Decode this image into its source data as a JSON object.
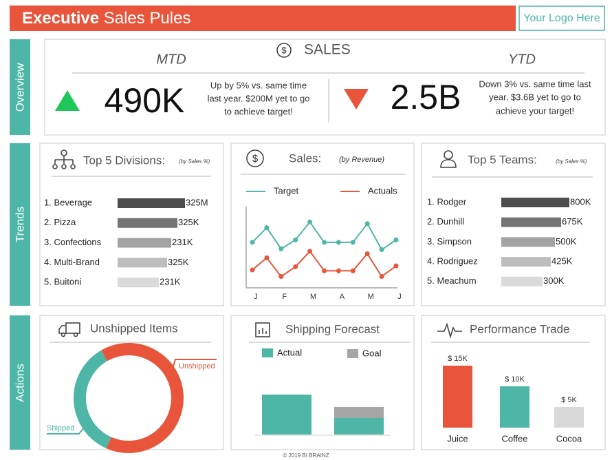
{
  "header": {
    "title_bold": "Executive",
    "title_rest": " Sales Pules",
    "logo": "Your Logo Here"
  },
  "sections": [
    "Overview",
    "Trends",
    "Actions"
  ],
  "overview": {
    "title": "SALES",
    "mtd": {
      "label": "MTD",
      "value": "490K",
      "description": [
        "Up by 5% vs. same time",
        "last year. $200M yet to go",
        "to achieve target!"
      ]
    },
    "ytd": {
      "label": "YTD",
      "value": "2.5B",
      "description": [
        "Down 3% vs. same time last",
        "year. $3.6B yet to go to",
        "achieve your target!"
      ]
    }
  },
  "chart_data": [
    {
      "type": "bar",
      "orientation": "horizontal",
      "title": "Top 5 Divisions:",
      "subtitle": "(by Sales %)",
      "categories": [
        "1. Beverage",
        "2. Pizza",
        "3. Confections",
        "4. Multi-Brand",
        "5. Buitoni"
      ],
      "values": [
        98,
        87,
        78,
        72,
        60
      ],
      "amounts": [
        "325M",
        "325K",
        "231K",
        "325K",
        "231K"
      ],
      "colors": [
        "#4d4d4d",
        "#747474",
        "#a3a3a3",
        "#bdbdbd",
        "#dadada"
      ],
      "xlim": [
        0,
        100
      ]
    },
    {
      "type": "line",
      "title": "Sales:",
      "subtitle": "(by Revenue)",
      "categories": [
        "J",
        null,
        "F",
        null,
        "M",
        null,
        "A",
        null,
        "M",
        null,
        "J"
      ],
      "series": [
        {
          "name": "Target",
          "color": "#4db6a6",
          "values": [
            56,
            74,
            48,
            59,
            81,
            56,
            56,
            56,
            79,
            47,
            59
          ]
        },
        {
          "name": "Actuals",
          "color": "#e8553a",
          "values": [
            22,
            37,
            14,
            26,
            45,
            21,
            21,
            21,
            42,
            14,
            27
          ]
        }
      ],
      "ylim": [
        0,
        100
      ]
    },
    {
      "type": "bar",
      "orientation": "horizontal",
      "title": "Top 5 Teams:",
      "subtitle": "(by Sales %)",
      "categories": [
        "1. Rodger",
        "2. Dunhill",
        "3. Simpson",
        "4. Rodriguez",
        "5. Meachum"
      ],
      "values": [
        99,
        87,
        78,
        72,
        60
      ],
      "amounts": [
        "800K",
        "675K",
        "500K",
        "425K",
        "300K"
      ],
      "colors": [
        "#4d4d4d",
        "#747474",
        "#a3a3a3",
        "#bdbdbd",
        "#dadada"
      ],
      "xlim": [
        0,
        100
      ]
    },
    {
      "type": "pie",
      "donut": true,
      "title": "Unshipped Items",
      "categories": [
        "Unshipped",
        "Shipped"
      ],
      "values": [
        65,
        35
      ],
      "colors": [
        "#e8553a",
        "#4db6a6"
      ]
    },
    {
      "type": "bar",
      "stacked": true,
      "title": "Shipping Forecast",
      "categories": [
        null,
        null
      ],
      "series": [
        {
          "name": "Actual",
          "color": "#4db6a6",
          "values": [
            58,
            24
          ]
        },
        {
          "name": "Goal",
          "color": "#a6a6a6",
          "values": [
            0,
            16
          ]
        }
      ],
      "ylim": [
        0,
        100
      ]
    },
    {
      "type": "bar",
      "title": "Performance Trade",
      "categories": [
        "Juice",
        "Coffee",
        "Cocoa"
      ],
      "values": [
        15000,
        10000,
        5000
      ],
      "value_labels": [
        "$ 15K",
        "$ 10K",
        "$ 5K"
      ],
      "colors": [
        "#e8553a",
        "#4db6a6",
        "#d9d9d9"
      ],
      "ylim": [
        0,
        18000
      ]
    }
  ],
  "footer": "© 2019 BI BRAINZ"
}
